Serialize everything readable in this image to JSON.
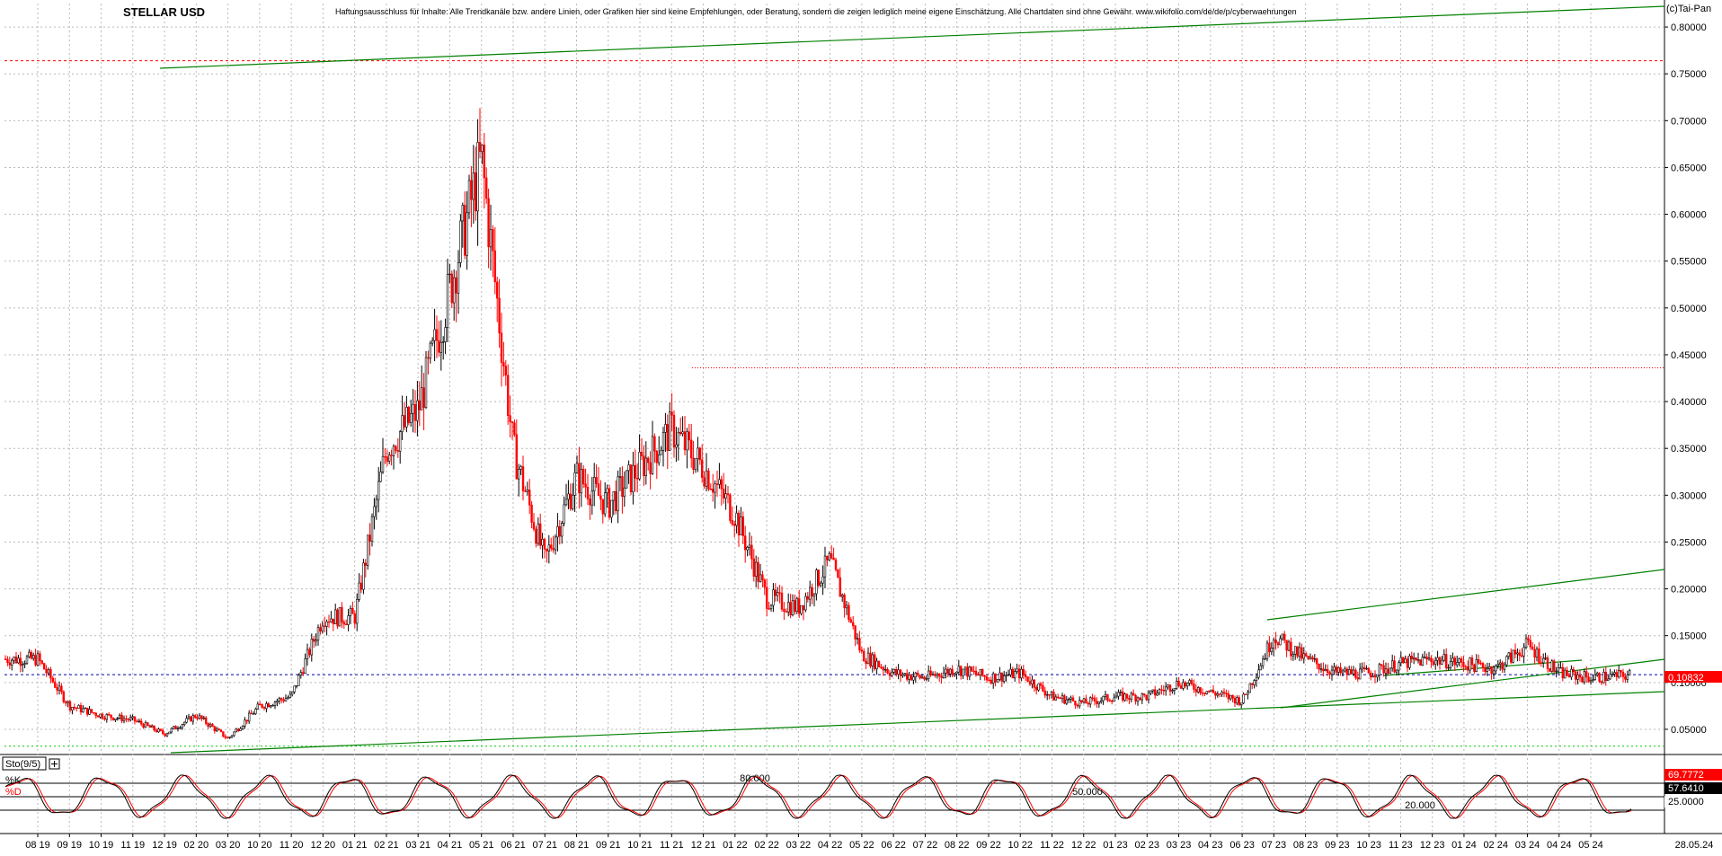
{
  "chart_data": {
    "type": "candlestick",
    "title": "STELLAR USD",
    "disclaimer": "Haftungsausschluss für Inhalte: Alle Trendkanäle bzw. andere Linien, oder Grafiken hier sind keine Empfehlungen, oder Beratung, sondern die zeigen lediglich meine eigene Einschätzung. Alle Chartdaten sind ohne Gewähr.  www.wikifolio.com/de/de/p/cyberwaehrungen",
    "copyright": "(c)Tai-Pan",
    "ylim": [
      0.025,
      0.825
    ],
    "y_ticks": [
      0.8,
      0.75,
      0.7,
      0.65,
      0.6,
      0.55,
      0.5,
      0.45,
      0.4,
      0.35,
      0.3,
      0.25,
      0.2,
      0.15,
      0.1,
      0.05
    ],
    "y_tick_labels": [
      "0.80000",
      "0.75000",
      "0.70000",
      "0.65000",
      "0.60000",
      "0.55000",
      "0.50000",
      "0.45000",
      "0.40000",
      "0.35000",
      "0.30000",
      "0.25000",
      "0.20000",
      "0.15000",
      "0.10000",
      "0.05000"
    ],
    "x_tick_labels": [
      "08 19",
      "09 19",
      "10 19",
      "11 19",
      "12 19",
      "02 20",
      "03 20",
      "10 20",
      "11 20",
      "12 20",
      "01 21",
      "02 21",
      "03 21",
      "04 21",
      "05 21",
      "06 21",
      "07 21",
      "08 21",
      "09 21",
      "10 21",
      "11 21",
      "12 21",
      "01 22",
      "02 22",
      "03 22",
      "04 22",
      "05 22",
      "06 22",
      "07 22",
      "08 22",
      "09 22",
      "10 22",
      "11 22",
      "12 22",
      "01 23",
      "02 23",
      "03 23",
      "04 23",
      "06 23",
      "07 23",
      "08 23",
      "09 23",
      "10 23",
      "11 23",
      "12 23",
      "01 24",
      "02 24",
      "03 24",
      "04 24",
      "05 24"
    ],
    "last_date": "28.05.24",
    "last_price": 0.10832,
    "last_price_label": "0.10832",
    "grid": true,
    "up_color": "#000000",
    "down_color": "#ff0000",
    "trendline_color": "#008000",
    "close_series_approx": {
      "x": [
        "08 19",
        "09 19",
        "10 19",
        "11 19",
        "12 19",
        "02 20",
        "03 20",
        "10 20",
        "11 20",
        "12 20",
        "01 21",
        "02 21",
        "03 21",
        "04 21",
        "05 21",
        "06 21",
        "07 21",
        "08 21",
        "09 21",
        "10 21",
        "11 21",
        "12 21",
        "01 22",
        "02 22",
        "03 22",
        "04 22",
        "05 22",
        "06 22",
        "07 22",
        "08 22",
        "09 22",
        "10 22",
        "11 22",
        "12 22",
        "01 23",
        "02 23",
        "03 23",
        "04 23",
        "06 23",
        "07 23",
        "08 23",
        "09 23",
        "10 23",
        "11 23",
        "12 23",
        "01 24",
        "02 24",
        "03 24",
        "04 24",
        "05 24",
        "28.05.24"
      ],
      "values": [
        0.125,
        0.075,
        0.065,
        0.06,
        0.045,
        0.065,
        0.04,
        0.075,
        0.085,
        0.17,
        0.17,
        0.35,
        0.39,
        0.52,
        0.66,
        0.35,
        0.23,
        0.32,
        0.29,
        0.33,
        0.37,
        0.33,
        0.28,
        0.19,
        0.18,
        0.23,
        0.13,
        0.11,
        0.105,
        0.115,
        0.105,
        0.11,
        0.085,
        0.078,
        0.085,
        0.085,
        0.1,
        0.09,
        0.08,
        0.15,
        0.125,
        0.11,
        0.11,
        0.12,
        0.125,
        0.12,
        0.115,
        0.14,
        0.11,
        0.105,
        0.108
      ]
    },
    "annotations": {
      "high_level": 0.764,
      "mid_resistance": 0.436,
      "low_level": 0.032
    },
    "stochastic": {
      "label": "Sto(9/5)",
      "k_label": "%K",
      "d_label": "%D",
      "levels": [
        80,
        50,
        20
      ],
      "level_labels": [
        "80.000",
        "50.000",
        "20.000"
      ],
      "axis_labels": [
        "69.7772",
        "57.6410",
        "25.0000"
      ],
      "k_color": "#000000",
      "d_color": "#ff0000",
      "k_last": 69.7772,
      "d_last": 57.641
    }
  }
}
